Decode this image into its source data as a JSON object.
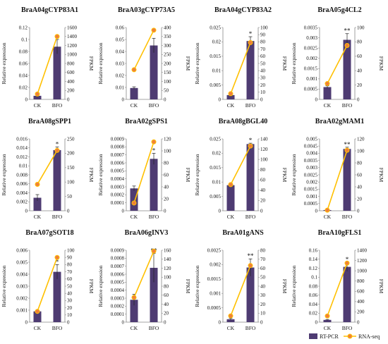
{
  "colors": {
    "bar": "#4e3b72",
    "line": "#ffc000",
    "marker": "#f08039",
    "axis": "#888888"
  },
  "legend": {
    "rtpcr": "RT-PCR",
    "rnaseq": "RNA-seq"
  },
  "chart_data": [
    {
      "type": "bar",
      "title": "BraA04gCYP83A1",
      "categories": [
        "CK",
        "BFO"
      ],
      "ylabel": "Relative expression",
      "y2label": "FPKM",
      "ylim": [
        0,
        0.12
      ],
      "yticks": [
        "0",
        "0.02",
        "0.04",
        "0.06",
        "0.08",
        "0.1",
        "0.12"
      ],
      "y2lim": [
        0,
        1600
      ],
      "y2ticks": [
        "0",
        "200",
        "400",
        "600",
        "800",
        "1000",
        "1200",
        "1400",
        "1600"
      ],
      "series": [
        {
          "name": "RT-PCR",
          "type": "bar",
          "values": [
            0.006,
            0.088
          ],
          "errors": [
            0.002,
            0.012
          ]
        },
        {
          "name": "RNA-seq",
          "type": "line",
          "axis": "right",
          "values": [
            120,
            1400
          ]
        }
      ],
      "significance": [
        "",
        "*"
      ]
    },
    {
      "type": "bar",
      "title": "BraA03gCYP73A5",
      "categories": [
        "CK",
        "BFO"
      ],
      "ylabel": "Relative expression",
      "y2label": "FPKM",
      "ylim": [
        0,
        0.06
      ],
      "yticks": [
        "0",
        "0.01",
        "0.02",
        "0.03",
        "0.04",
        "0.05",
        "0.06"
      ],
      "y2lim": [
        0,
        400
      ],
      "y2ticks": [
        "0",
        "50",
        "100",
        "150",
        "200",
        "250",
        "300",
        "350",
        "400"
      ],
      "series": [
        {
          "name": "RT-PCR",
          "type": "bar",
          "values": [
            0.0095,
            0.045
          ],
          "errors": [
            0.001,
            0.006
          ]
        },
        {
          "name": "RNA-seq",
          "type": "line",
          "axis": "right",
          "values": [
            165,
            385
          ]
        }
      ],
      "significance": [
        "",
        ""
      ]
    },
    {
      "type": "bar",
      "title": "BraA04gCYP83A2",
      "categories": [
        "CK",
        "BFO"
      ],
      "ylabel": "Relative expression",
      "y2label": "FPKM",
      "ylim": [
        0,
        0.025
      ],
      "yticks": [
        "0",
        "0.005",
        "0.01",
        "0.015",
        "0.02",
        "0.025"
      ],
      "y2lim": [
        0,
        100
      ],
      "y2ticks": [
        "0",
        "10",
        "20",
        "30",
        "40",
        "50",
        "60",
        "70",
        "80",
        "90",
        "100"
      ],
      "series": [
        {
          "name": "RT-PCR",
          "type": "bar",
          "values": [
            0.0015,
            0.0203
          ],
          "errors": [
            0.0006,
            0.0015
          ]
        },
        {
          "name": "RNA-seq",
          "type": "line",
          "axis": "right",
          "values": [
            8,
            79
          ]
        }
      ],
      "significance": [
        "",
        "*"
      ]
    },
    {
      "type": "bar",
      "title": "BraA05g4CL2",
      "categories": [
        "CK",
        "BFO"
      ],
      "ylabel": "Relative expression",
      "y2label": "FPKM",
      "ylim": [
        0,
        0.0035
      ],
      "yticks": [
        "0",
        "0.0005",
        "0.001",
        "0.0015",
        "0.002",
        "0.0025",
        "0.003",
        "0.0035"
      ],
      "y2lim": [
        0,
        100
      ],
      "y2ticks": [
        "0",
        "20",
        "40",
        "60",
        "80",
        "100"
      ],
      "series": [
        {
          "name": "RT-PCR",
          "type": "bar",
          "values": [
            0.0006,
            0.0029
          ],
          "errors": [
            6e-05,
            0.0003
          ]
        },
        {
          "name": "RNA-seq",
          "type": "line",
          "axis": "right",
          "values": [
            22,
            75
          ]
        }
      ],
      "significance": [
        "",
        "**"
      ]
    },
    {
      "type": "bar",
      "title": "BraA08gSPP1",
      "categories": [
        "CK",
        "BFO"
      ],
      "ylabel": "Relative expression",
      "y2label": "FPKM",
      "ylim": [
        0,
        0.016
      ],
      "yticks": [
        "0",
        "0.002",
        "0.004",
        "0.006",
        "0.008",
        "0.01",
        "0.012",
        "0.014",
        "0.016"
      ],
      "y2lim": [
        0,
        250
      ],
      "y2ticks": [
        "0",
        "50",
        "100",
        "150",
        "200",
        "250"
      ],
      "series": [
        {
          "name": "RT-PCR",
          "type": "bar",
          "values": [
            0.0029,
            0.0135
          ],
          "errors": [
            0.0007,
            0.0007
          ]
        },
        {
          "name": "RNA-seq",
          "type": "line",
          "axis": "right",
          "values": [
            92,
            210
          ]
        }
      ],
      "significance": [
        "",
        "*"
      ]
    },
    {
      "type": "bar",
      "title": "BraA02gSPS1",
      "categories": [
        "CK",
        "BFO"
      ],
      "ylabel": "Relative expression",
      "y2label": "FPKM",
      "ylim": [
        0,
        0.0009
      ],
      "yticks": [
        "0",
        "0.0001",
        "0.0002",
        "0.0003",
        "0.0004",
        "0.0005",
        "0.0006",
        "0.0007",
        "0.0008",
        "0.0009"
      ],
      "y2lim": [
        0,
        120
      ],
      "y2ticks": [
        "0",
        "20",
        "40",
        "60",
        "80",
        "100",
        "120"
      ],
      "series": [
        {
          "name": "RT-PCR",
          "type": "bar",
          "values": [
            0.00028,
            0.00065
          ],
          "errors": [
            3e-05,
            7e-05
          ]
        },
        {
          "name": "RNA-seq",
          "type": "line",
          "axis": "right",
          "values": [
            13,
            115
          ]
        }
      ],
      "significance": [
        "",
        "*"
      ]
    },
    {
      "type": "bar",
      "title": "BraA08gBGL40",
      "categories": [
        "CK",
        "BFO"
      ],
      "ylabel": "Relative expression",
      "y2label": "FPKM",
      "ylim": [
        0,
        0.025
      ],
      "yticks": [
        "0",
        "0.005",
        "0.01",
        "0.015",
        "0.02",
        "0.025"
      ],
      "y2lim": [
        0,
        140
      ],
      "y2ticks": [
        "0",
        "20",
        "40",
        "60",
        "80",
        "100",
        "120",
        "140"
      ],
      "series": [
        {
          "name": "RT-PCR",
          "type": "bar",
          "values": [
            0.0089,
            0.0232
          ],
          "errors": [
            0.0002,
            0.0003
          ]
        },
        {
          "name": "RNA-seq",
          "type": "line",
          "axis": "right",
          "values": [
            51,
            126
          ]
        }
      ],
      "significance": [
        "",
        "*"
      ]
    },
    {
      "type": "bar",
      "title": "BraA02gMAM1",
      "categories": [
        "CK",
        "BFO"
      ],
      "ylabel": "Relative expression",
      "y2label": "FPKM",
      "ylim": [
        0,
        0.005
      ],
      "yticks": [
        "0",
        "0.0005",
        "0.001",
        "0.0015",
        "0.002",
        "0.0025",
        "0.003",
        "0.0035",
        "0.004",
        "0.0045",
        "0.005"
      ],
      "y2lim": [
        0,
        120
      ],
      "y2ticks": [
        "0",
        "20",
        "40",
        "60",
        "80",
        "100",
        "120"
      ],
      "series": [
        {
          "name": "RT-PCR",
          "type": "bar",
          "values": [
            5e-05,
            0.0043
          ],
          "errors": [
            2e-05,
            0.00012
          ]
        },
        {
          "name": "RNA-seq",
          "type": "line",
          "axis": "right",
          "values": [
            1,
            101
          ]
        }
      ],
      "significance": [
        "",
        "**"
      ]
    },
    {
      "type": "bar",
      "title": "BraA07gSOT18",
      "categories": [
        "CK",
        "BFO"
      ],
      "ylabel": "Relative expression",
      "y2label": "FPKM",
      "ylim": [
        0,
        0.006
      ],
      "yticks": [
        "0",
        "0.001",
        "0.002",
        "0.003",
        "0.004",
        "0.005",
        "0.006"
      ],
      "y2lim": [
        0,
        100
      ],
      "y2ticks": [
        "0",
        "10",
        "20",
        "30",
        "40",
        "50",
        "60",
        "70",
        "80",
        "90",
        "100"
      ],
      "series": [
        {
          "name": "RT-PCR",
          "type": "bar",
          "values": [
            0.0009,
            0.0042
          ],
          "errors": [
            0.0001,
            0.0006
          ]
        },
        {
          "name": "RNA-seq",
          "type": "line",
          "axis": "right",
          "values": [
            15,
            90
          ]
        }
      ],
      "significance": [
        "",
        "*"
      ]
    },
    {
      "type": "bar",
      "title": "BraA06gINV3",
      "categories": [
        "CK",
        "BFO"
      ],
      "ylabel": "Relative expression",
      "y2label": "FPKM",
      "ylim": [
        0,
        0.0009
      ],
      "yticks": [
        "0",
        "0.0001",
        "0.0002",
        "0.0003",
        "0.0004",
        "0.0005",
        "0.0006",
        "0.0007",
        "0.0008",
        "0.0009"
      ],
      "y2lim": [
        0,
        160
      ],
      "y2ticks": [
        "0",
        "20",
        "40",
        "60",
        "80",
        "100",
        "120",
        "140",
        "160"
      ],
      "series": [
        {
          "name": "RT-PCR",
          "type": "bar",
          "values": [
            0.00028,
            0.00068
          ],
          "errors": [
            7e-05,
            0.00018
          ]
        },
        {
          "name": "RNA-seq",
          "type": "line",
          "axis": "right",
          "values": [
            55,
            158
          ]
        }
      ],
      "significance": [
        "",
        "**"
      ]
    },
    {
      "type": "bar",
      "title": "BraA01gANS",
      "categories": [
        "CK",
        "BFO"
      ],
      "ylabel": "Relative expression",
      "y2label": "FPKM",
      "ylim": [
        0,
        0.0025
      ],
      "yticks": [
        "0",
        "0.0005",
        "0.001",
        "0.0015",
        "0.002",
        "0.0025"
      ],
      "y2lim": [
        0,
        80
      ],
      "y2ticks": [
        "0",
        "10",
        "20",
        "30",
        "40",
        "50",
        "60",
        "70",
        "80"
      ],
      "series": [
        {
          "name": "RT-PCR",
          "type": "bar",
          "values": [
            0.0001,
            0.0019
          ],
          "errors": [
            3e-05,
            0.0003
          ]
        },
        {
          "name": "RNA-seq",
          "type": "line",
          "axis": "right",
          "values": [
            7,
            63
          ]
        }
      ],
      "significance": [
        "",
        "**"
      ]
    },
    {
      "type": "bar",
      "title": "BraA10gFLS1",
      "categories": [
        "CK",
        "BFO"
      ],
      "ylabel": "Relative expression",
      "y2label": "FPKM",
      "ylim": [
        0,
        0.16
      ],
      "yticks": [
        "0",
        "0.02",
        "0.04",
        "0.06",
        "0.08",
        "0.1",
        "0.12",
        "0.14",
        "0.16"
      ],
      "y2lim": [
        0,
        1400
      ],
      "y2ticks": [
        "0",
        "200",
        "400",
        "600",
        "800",
        "1000",
        "1200",
        "1400"
      ],
      "series": [
        {
          "name": "RT-PCR",
          "type": "bar",
          "values": [
            0.005,
            0.123
          ],
          "errors": [
            0.001,
            0.01
          ]
        },
        {
          "name": "RNA-seq",
          "type": "line",
          "axis": "right",
          "values": [
            120,
            1150
          ]
        }
      ],
      "significance": [
        "",
        "*"
      ]
    }
  ]
}
